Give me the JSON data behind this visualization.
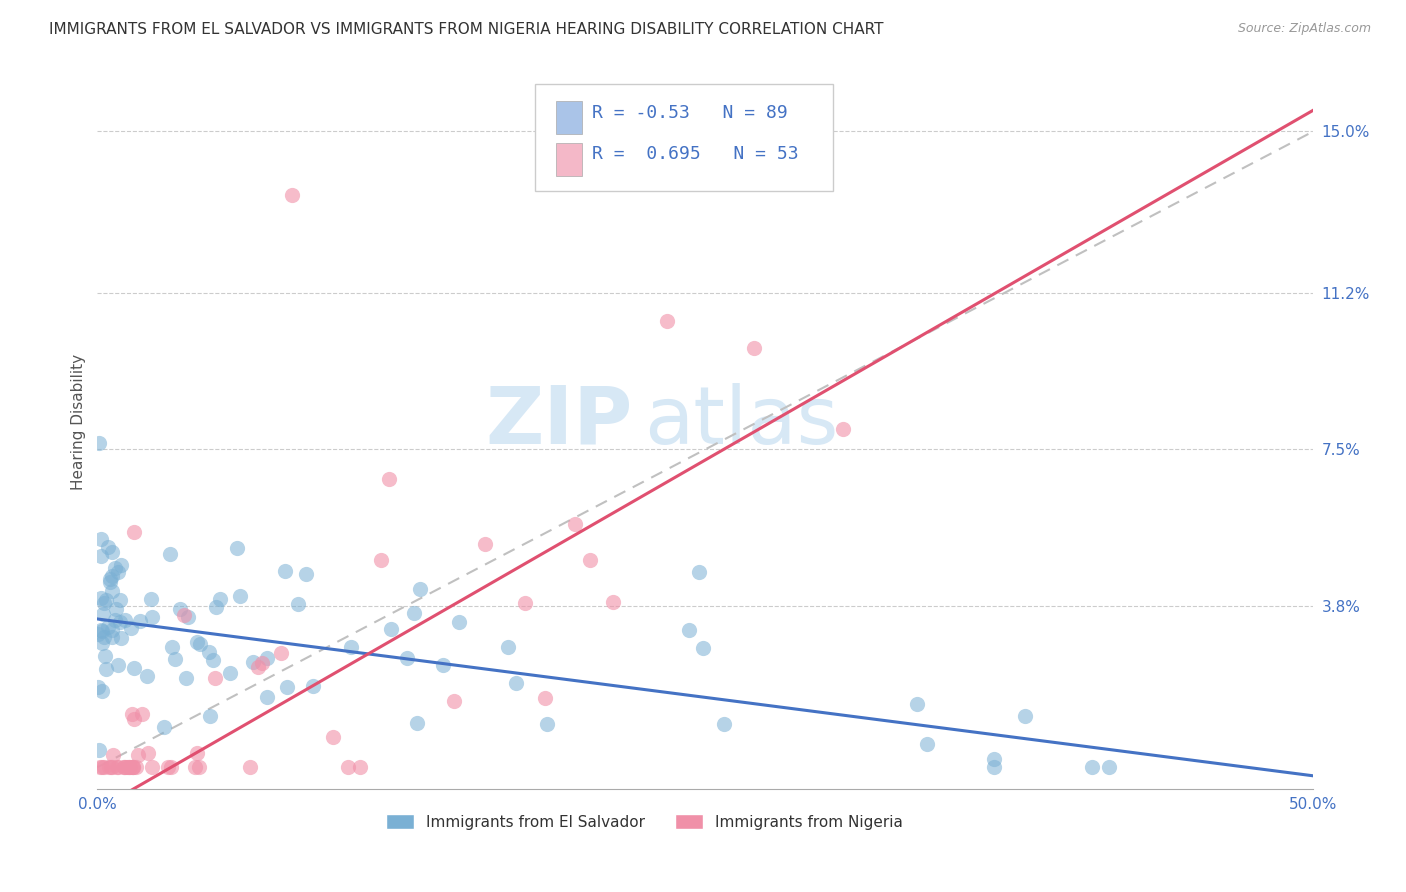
{
  "title": "IMMIGRANTS FROM EL SALVADOR VS IMMIGRANTS FROM NIGERIA HEARING DISABILITY CORRELATION CHART",
  "source": "Source: ZipAtlas.com",
  "ylabel": "Hearing Disability",
  "xlim": [
    0.0,
    0.5
  ],
  "ylim": [
    -0.005,
    0.168
  ],
  "yticks": [
    0.038,
    0.075,
    0.112,
    0.15
  ],
  "ytick_labels": [
    "3.8%",
    "7.5%",
    "11.2%",
    "15.0%"
  ],
  "xticks": [
    0.0,
    0.5
  ],
  "xtick_labels": [
    "0.0%",
    "50.0%"
  ],
  "grid_color": "#cccccc",
  "background_color": "#ffffff",
  "watermark_zip": "ZIP",
  "watermark_atlas": "atlas",
  "series": [
    {
      "name": "Immigrants from El Salvador",
      "R": -0.53,
      "N": 89,
      "legend_color": "#aac4e8",
      "scatter_color": "#7ab0d4",
      "trend_color": "#4472c4",
      "seed": 42
    },
    {
      "name": "Immigrants from Nigeria",
      "R": 0.695,
      "N": 53,
      "legend_color": "#f4b8c8",
      "scatter_color": "#f090a8",
      "trend_color": "#e05070",
      "seed": 77
    }
  ],
  "title_fontsize": 11,
  "axis_label_fontsize": 11,
  "tick_fontsize": 11,
  "legend_fontsize": 12
}
